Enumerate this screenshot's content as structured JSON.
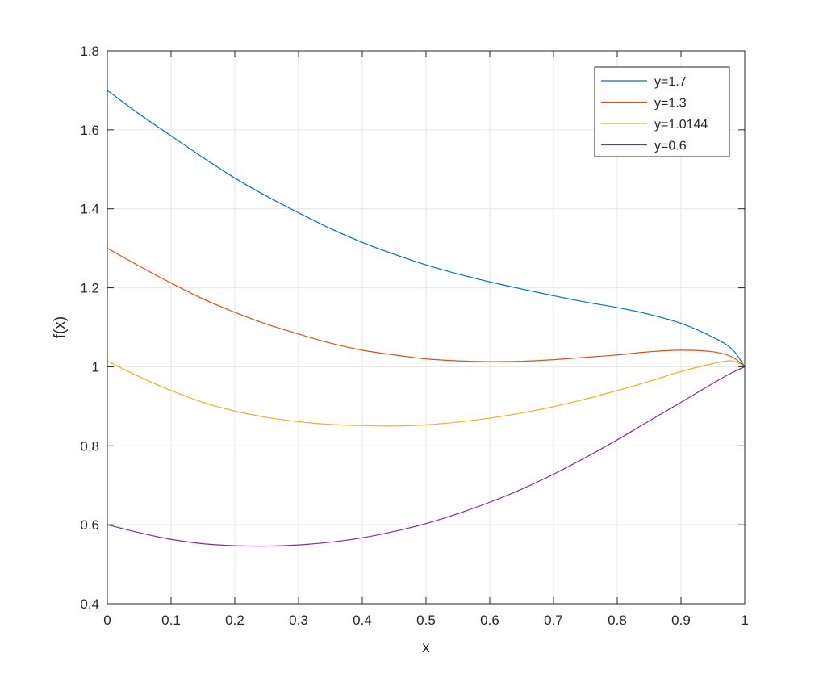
{
  "chart_data": {
    "type": "line",
    "title": "",
    "xlabel": "x",
    "ylabel": "f(x)",
    "xlim": [
      0,
      1
    ],
    "ylim": [
      0.4,
      1.8
    ],
    "xticks": [
      0,
      0.1,
      0.2,
      0.3,
      0.4,
      0.5,
      0.6,
      0.7,
      0.8,
      0.9,
      1
    ],
    "xtick_labels": [
      "0",
      "0.1",
      "0.2",
      "0.3",
      "0.4",
      "0.5",
      "0.6",
      "0.7",
      "0.8",
      "0.9",
      "1"
    ],
    "yticks": [
      0.4,
      0.6,
      0.8,
      1,
      1.2,
      1.4,
      1.6,
      1.8
    ],
    "ytick_labels": [
      "0.4",
      "0.6",
      "0.8",
      "1",
      "1.2",
      "1.4",
      "1.6",
      "1.8"
    ],
    "grid": true,
    "legend_position": "top-right",
    "x": [
      0,
      0.05,
      0.1,
      0.15,
      0.2,
      0.25,
      0.3,
      0.35,
      0.4,
      0.45,
      0.5,
      0.55,
      0.6,
      0.65,
      0.7,
      0.75,
      0.8,
      0.85,
      0.9,
      0.95,
      0.98,
      1
    ],
    "series": [
      {
        "name": "y=1.7",
        "color": "#0072BD",
        "values": [
          1.7,
          1.64,
          1.585,
          1.53,
          1.478,
          1.432,
          1.39,
          1.35,
          1.315,
          1.285,
          1.258,
          1.235,
          1.215,
          1.197,
          1.18,
          1.164,
          1.15,
          1.133,
          1.11,
          1.075,
          1.045,
          1.0
        ]
      },
      {
        "name": "y=1.3",
        "color": "#D95319",
        "values": [
          1.3,
          1.255,
          1.212,
          1.172,
          1.138,
          1.108,
          1.083,
          1.06,
          1.042,
          1.03,
          1.02,
          1.015,
          1.013,
          1.014,
          1.018,
          1.024,
          1.03,
          1.038,
          1.042,
          1.038,
          1.025,
          1.0
        ]
      },
      {
        "name": "y=1.0144",
        "color": "#EDB120",
        "values": [
          1.0144,
          0.975,
          0.94,
          0.91,
          0.888,
          0.872,
          0.861,
          0.854,
          0.851,
          0.85,
          0.853,
          0.86,
          0.87,
          0.883,
          0.899,
          0.918,
          0.94,
          0.963,
          0.988,
          1.008,
          1.015,
          1.0
        ]
      },
      {
        "name": "y=0.6",
        "color": "#7E2F8E",
        "values": [
          0.6,
          0.58,
          0.563,
          0.552,
          0.547,
          0.546,
          0.549,
          0.556,
          0.567,
          0.583,
          0.603,
          0.628,
          0.657,
          0.69,
          0.728,
          0.77,
          0.815,
          0.863,
          0.91,
          0.958,
          0.985,
          1.0
        ]
      }
    ]
  }
}
